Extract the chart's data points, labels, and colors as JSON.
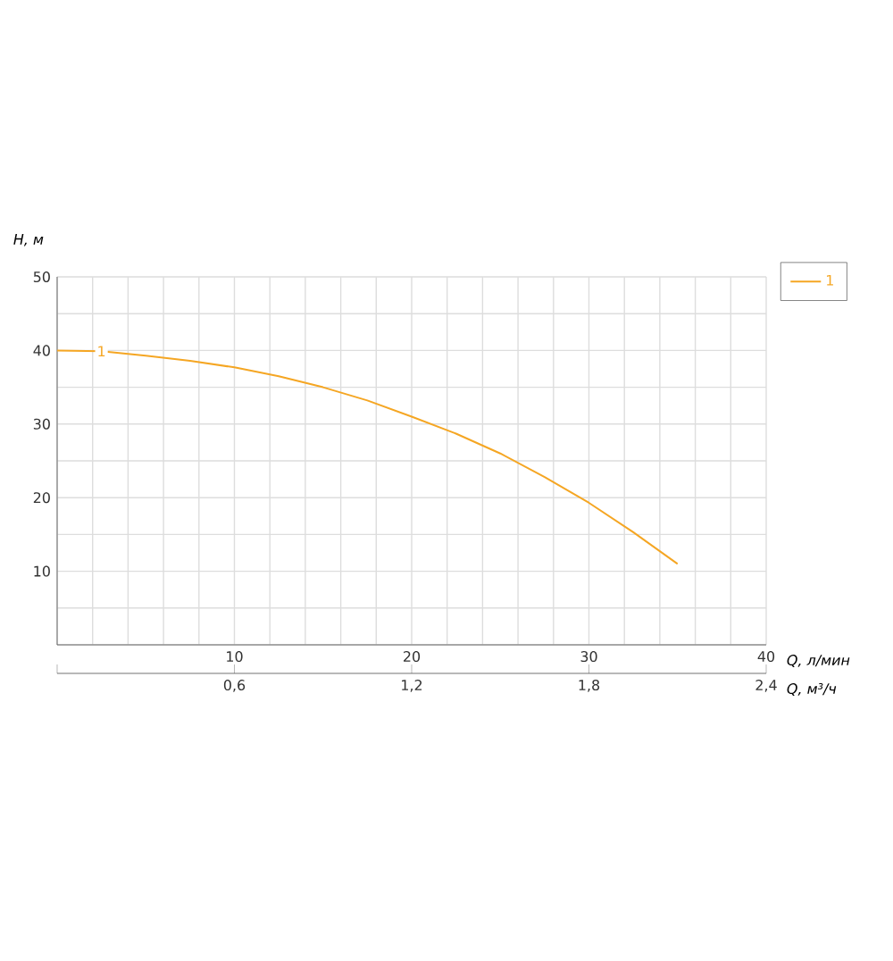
{
  "chart_data": {
    "type": "line",
    "xlabel": "Q, л/мин",
    "ylabel": "H, м",
    "x2label": "Q, м³/ч",
    "xlim": [
      0,
      40
    ],
    "ylim": [
      0,
      50
    ],
    "xticks": [
      {
        "value": 0,
        "label": null
      },
      {
        "value": 2,
        "label": null
      },
      {
        "value": 4,
        "label": null
      },
      {
        "value": 6,
        "label": null
      },
      {
        "value": 8,
        "label": null
      },
      10,
      {
        "value": 12,
        "label": null
      },
      {
        "value": 14,
        "label": null
      },
      {
        "value": 16,
        "label": null
      },
      {
        "value": 18,
        "label": null
      },
      20,
      {
        "value": 22,
        "label": null
      },
      {
        "value": 24,
        "label": null
      },
      {
        "value": 26,
        "label": null
      },
      {
        "value": 28,
        "label": null
      },
      30,
      {
        "value": 32,
        "label": null
      },
      {
        "value": 34,
        "label": null
      },
      {
        "value": 36,
        "label": null
      },
      {
        "value": 38,
        "label": null
      },
      40
    ],
    "yticks": [
      {
        "value": 0,
        "label": null
      },
      {
        "value": 5,
        "label": null
      },
      10,
      {
        "value": 15,
        "label": null
      },
      20,
      {
        "value": 25,
        "label": null
      },
      30,
      {
        "value": 35,
        "label": null
      },
      40,
      {
        "value": 45,
        "label": null
      },
      50
    ],
    "x2lim": [
      0,
      2.4
    ],
    "x2ticks": [
      {
        "value": 0,
        "label": null
      },
      {
        "value": 0.6,
        "label": "0,6"
      },
      {
        "value": 1.2,
        "label": "1,2"
      },
      {
        "value": 1.8,
        "label": "1,8"
      },
      {
        "value": 2.4,
        "label": "2,4"
      }
    ],
    "grid": true,
    "legend": "top right",
    "marker": "none",
    "line_style": "solid",
    "series": [
      {
        "name": "1",
        "color": "#f5a623",
        "x": [
          0,
          2.5,
          5,
          7.5,
          10,
          12.5,
          15,
          17.5,
          20,
          22.5,
          25,
          27.5,
          30,
          32.5,
          35
        ],
        "values": [
          40,
          39.9,
          39.3,
          38.6,
          37.7,
          36.5,
          35,
          33.2,
          31,
          28.7,
          26,
          22.8,
          19.3,
          15.3,
          11
        ]
      }
    ]
  }
}
